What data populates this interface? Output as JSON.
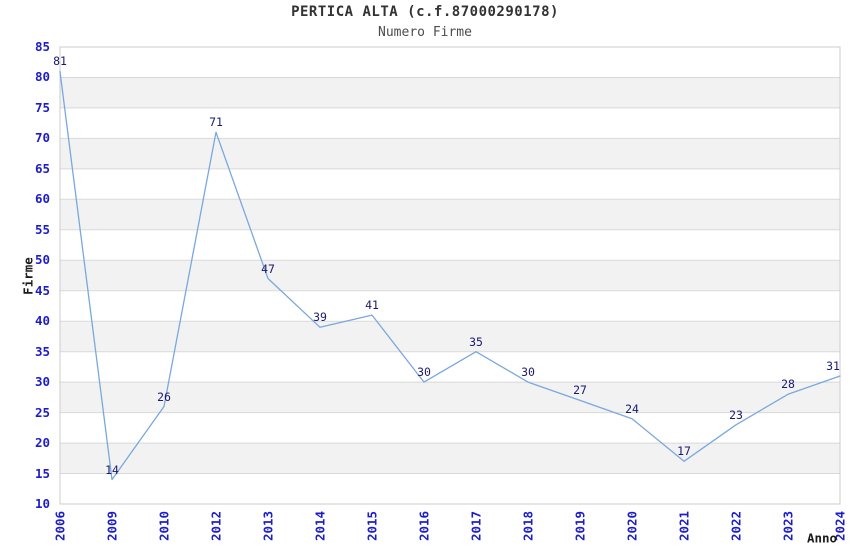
{
  "chart_data": {
    "type": "line",
    "title": "PERTICA ALTA (c.f.87000290178)",
    "subtitle": "Numero Firme",
    "xlabel": "Anno",
    "ylabel": "Firme",
    "categories": [
      "2006",
      "2009",
      "2010",
      "2012",
      "2013",
      "2014",
      "2015",
      "2016",
      "2017",
      "2018",
      "2019",
      "2020",
      "2021",
      "2022",
      "2023",
      "2024"
    ],
    "values": [
      81,
      14,
      26,
      71,
      47,
      39,
      41,
      30,
      35,
      30,
      27,
      24,
      17,
      23,
      28,
      31
    ],
    "ylim": [
      10,
      85
    ],
    "ytick_step": 5,
    "point_labels_shown": true,
    "grid": "horizontal-bands-alternating",
    "legend_position": "none",
    "colors": {
      "line": "#7aa8dd",
      "tick_label": "#1c1ccd",
      "point_label": "#191970",
      "title": "#333333",
      "subtitle": "#4d4d4d",
      "axis_title": "#1a1a1a",
      "band": "#f2f2f2",
      "gridline": "#d9d9d9",
      "frame": "#cccccc",
      "background": "#ffffff"
    }
  }
}
